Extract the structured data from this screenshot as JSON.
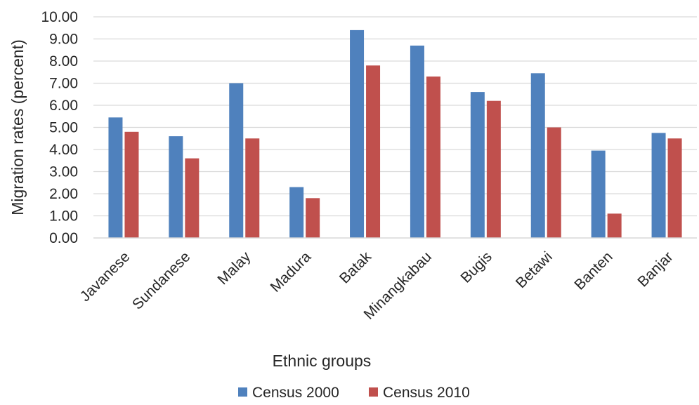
{
  "chart_data": {
    "type": "bar",
    "title": "",
    "xlabel": "Ethnic groups",
    "ylabel": "Migration rates (percent)",
    "ylim": [
      0,
      10
    ],
    "ytick_step": 1,
    "ytick_labels": [
      "0.00",
      "1.00",
      "2.00",
      "3.00",
      "4.00",
      "5.00",
      "6.00",
      "7.00",
      "8.00",
      "9.00",
      "10.00"
    ],
    "categories": [
      "Javanese",
      "Sundanese",
      "Malay",
      "Madura",
      "Batak",
      "Minangkabau",
      "Bugis",
      "Betawi",
      "Banten",
      "Banjar"
    ],
    "series": [
      {
        "name": "Census 2000",
        "color": "#4f81bd",
        "values": [
          5.45,
          4.6,
          7.0,
          2.3,
          9.4,
          8.7,
          6.6,
          7.45,
          3.95,
          4.75
        ]
      },
      {
        "name": "Census 2010",
        "color": "#c0504d",
        "values": [
          4.8,
          3.6,
          4.5,
          1.8,
          7.8,
          7.3,
          6.2,
          5.0,
          1.1,
          4.5
        ]
      }
    ],
    "grid": "horizontal",
    "legend_position": "bottom-center"
  }
}
